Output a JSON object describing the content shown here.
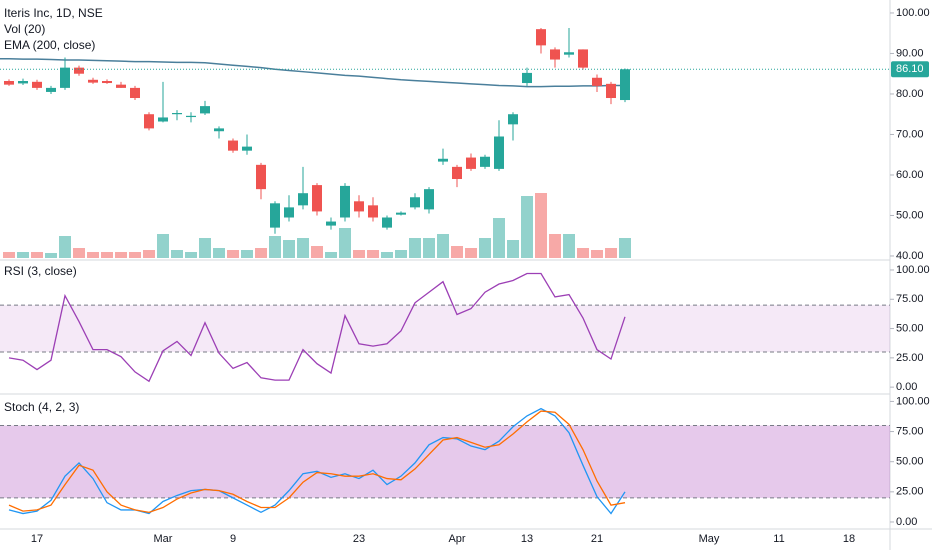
{
  "chart_data": [
    {
      "type": "candlestick",
      "title": "Iteris Inc, 1D, NSE",
      "categories": [
        null,
        null,
        "17",
        null,
        null,
        null,
        null,
        null,
        null,
        null,
        null,
        "Mar",
        null,
        null,
        null,
        null,
        "9",
        null,
        null,
        null,
        null,
        null,
        null,
        null,
        null,
        "23",
        null,
        null,
        null,
        null,
        null,
        null,
        "Apr",
        null,
        null,
        null,
        null,
        "13",
        null,
        null,
        null,
        null,
        "21",
        null,
        null,
        null,
        null,
        null,
        null,
        null,
        "May",
        null,
        null,
        null,
        null,
        "11",
        null,
        null,
        null,
        null,
        "18",
        null
      ],
      "open": [
        83.2,
        82.6,
        83,
        80.5,
        81.5,
        86.5,
        83.5,
        83.2,
        82.3,
        81.5,
        75,
        73.2,
        75,
        74.3,
        75.2,
        70.8,
        68.5,
        66,
        62.5,
        47,
        49.5,
        52.5,
        57.5,
        47.5,
        49.5,
        53.5,
        52.5,
        47,
        50.2,
        52,
        51.5,
        63.3,
        62,
        64.3,
        62,
        61.5,
        72.5,
        82.7,
        96,
        91,
        89.7,
        91,
        84,
        82.5,
        78.5,
        null,
        null,
        null,
        null,
        null,
        null,
        null,
        null,
        null,
        null,
        null,
        null,
        null,
        null,
        null,
        null,
        null
      ],
      "high": [
        83.6,
        83.8,
        83.5,
        82,
        89,
        87,
        84,
        83.6,
        83,
        82,
        75.5,
        83,
        76,
        75.5,
        78.3,
        72,
        69,
        70,
        63,
        53.5,
        55,
        62,
        58,
        49.5,
        58,
        55,
        54.5,
        50,
        51,
        55.5,
        57,
        66.5,
        62.5,
        65.3,
        65,
        73.5,
        75.5,
        86.5,
        96.3,
        91.5,
        96.3,
        91,
        84.8,
        83,
        86.3,
        null,
        null,
        null,
        null,
        null,
        null,
        null,
        null,
        null,
        null,
        null,
        null,
        null,
        null,
        null,
        null,
        null
      ],
      "low": [
        82,
        82.2,
        81,
        80,
        81,
        84.5,
        82.5,
        82.5,
        81.5,
        78.5,
        71,
        73,
        73.5,
        73,
        74.8,
        69,
        65.5,
        65,
        54,
        45.5,
        48.5,
        51.5,
        50,
        46.5,
        48.5,
        49.5,
        48.5,
        46.5,
        50,
        51.5,
        50.5,
        62.5,
        57,
        61,
        61.5,
        61,
        68.5,
        82,
        90,
        86.5,
        89,
        86,
        80.5,
        77.5,
        78,
        null,
        null,
        null,
        null,
        null,
        null,
        null,
        null,
        null,
        null,
        null,
        null,
        null,
        null,
        null,
        null,
        null
      ],
      "close": [
        82.3,
        83.2,
        81.5,
        81.5,
        86.5,
        85,
        82.8,
        82.7,
        81.5,
        79,
        71.5,
        74.2,
        75.3,
        74.6,
        77,
        71.5,
        66,
        67,
        56.5,
        53,
        52,
        55.5,
        51,
        48.5,
        57.3,
        51,
        49.5,
        49.5,
        50.7,
        54.5,
        56.5,
        64,
        59,
        61.5,
        64.5,
        69.5,
        75,
        85.2,
        92,
        88.5,
        90.3,
        86.5,
        82,
        79,
        86.1,
        null,
        null,
        null,
        null,
        null,
        null,
        null,
        null,
        null,
        null,
        null,
        null,
        null,
        null,
        null,
        null,
        null
      ],
      "volume": {
        "name": "Vol (20)",
        "values": [
          6,
          6,
          6,
          5,
          22,
          10,
          6,
          6,
          6,
          6,
          8,
          24,
          8,
          6,
          20,
          10,
          8,
          8,
          10,
          22,
          18,
          20,
          12,
          6,
          30,
          8,
          8,
          6,
          8,
          20,
          20,
          24,
          12,
          10,
          20,
          40,
          18,
          62,
          65,
          24,
          24,
          10,
          8,
          10,
          20,
          null,
          null,
          null,
          null,
          null,
          null,
          null,
          null,
          null,
          null,
          null,
          null,
          null,
          null,
          null,
          null,
          null
        ]
      },
      "ema": {
        "name": "EMA (200, close)",
        "color": "#4a7f9b",
        "values": [
          88.7,
          88.6,
          88.6,
          88.5,
          88.4,
          88.4,
          88.3,
          88.2,
          88.1,
          88.0,
          88.0,
          87.9,
          87.8,
          87.8,
          87.7,
          87.4,
          87.1,
          86.8,
          86.5,
          86.1,
          85.8,
          85.5,
          85.2,
          84.9,
          84.6,
          84.4,
          84.1,
          83.8,
          83.5,
          83.3,
          83.1,
          82.9,
          82.7,
          82.5,
          82.3,
          82.1,
          82.0,
          81.8,
          81.8,
          81.9,
          81.9,
          82.0,
          82.0,
          82.1,
          82.1,
          null,
          null,
          null,
          null,
          null,
          null,
          null,
          null,
          null,
          null,
          null,
          null,
          null,
          null,
          null,
          null,
          null
        ]
      },
      "up_color": "#26a69a",
      "down_color": "#ef5350",
      "price_tag": {
        "value": 86.1,
        "label": "86.10"
      },
      "ylim": [
        39.5,
        103.2
      ],
      "yticks": [
        {
          "value": 40,
          "label": "40.00"
        },
        {
          "value": 50,
          "label": "50.00"
        },
        {
          "value": 60,
          "label": "60.00"
        },
        {
          "value": 70,
          "label": "70.00"
        },
        {
          "value": 80,
          "label": "80.00"
        },
        {
          "value": 90,
          "label": "90.00"
        },
        {
          "value": 100,
          "label": "100.00"
        }
      ]
    },
    {
      "type": "line",
      "title": "RSI (3, close)",
      "series": [
        {
          "color": "#9c3fb5",
          "values": [
            25,
            23,
            15,
            23,
            78,
            56,
            32,
            32,
            26,
            13,
            5,
            31,
            39,
            27,
            55,
            29,
            16,
            21,
            8,
            6,
            6,
            32,
            20,
            12,
            61,
            37,
            35,
            37,
            48,
            72,
            81,
            90,
            62,
            67,
            81,
            88,
            91,
            97,
            97,
            77,
            79,
            59,
            32,
            24,
            60,
            null,
            null,
            null,
            null,
            null,
            null,
            null,
            null,
            null,
            null,
            null,
            null,
            null,
            null,
            null,
            null,
            null
          ]
        }
      ],
      "band": [
        30,
        70
      ],
      "band_color": "rgba(156,39,176,0.1)",
      "ylim": [
        -5,
        106.8
      ],
      "yticks": [
        {
          "value": 0,
          "label": "0.00"
        },
        {
          "value": 25,
          "label": "25.00"
        },
        {
          "value": 50,
          "label": "50.00"
        },
        {
          "value": 75,
          "label": "75.00"
        },
        {
          "value": 100,
          "label": "100.00"
        }
      ]
    },
    {
      "type": "line",
      "title": "Stoch (4, 2, 3)",
      "series": [
        {
          "color": "#2196f3",
          "values": [
            10,
            7,
            9,
            18,
            38,
            49,
            36,
            16,
            10,
            10,
            7,
            17,
            22,
            26,
            27,
            26,
            20,
            14,
            8,
            14,
            26,
            40,
            42,
            37,
            40,
            36,
            43,
            31,
            38,
            49,
            64,
            70,
            69,
            63,
            60,
            67,
            79,
            88,
            94,
            88,
            74,
            47,
            21,
            7,
            25,
            null,
            null,
            null,
            null,
            null,
            null,
            null,
            null,
            null,
            null,
            null,
            null,
            null,
            null,
            null,
            null,
            null
          ]
        },
        {
          "color": "#ff6d00",
          "values": [
            14,
            9,
            10,
            14,
            31,
            47,
            43,
            25,
            14,
            10,
            8,
            12,
            19,
            24,
            27,
            26,
            23,
            17,
            12,
            12,
            20,
            33,
            41,
            40,
            38,
            38,
            40,
            36,
            35,
            44,
            56,
            68,
            70,
            66,
            62,
            64,
            73,
            83,
            92,
            91,
            81,
            60,
            34,
            14,
            16,
            null,
            null,
            null,
            null,
            null,
            null,
            null,
            null,
            null,
            null,
            null,
            null,
            null,
            null,
            null,
            null,
            null
          ]
        }
      ],
      "band": [
        20,
        80
      ],
      "band_color": "rgba(156,39,176,0.25)",
      "ylim": [
        -5,
        104.5
      ],
      "yticks": [
        {
          "value": 0,
          "label": "0.00"
        },
        {
          "value": 25,
          "label": "25.00"
        },
        {
          "value": 50,
          "label": "50.00"
        },
        {
          "value": 75,
          "label": "75.00"
        },
        {
          "value": 100,
          "label": "100.00"
        }
      ]
    }
  ]
}
